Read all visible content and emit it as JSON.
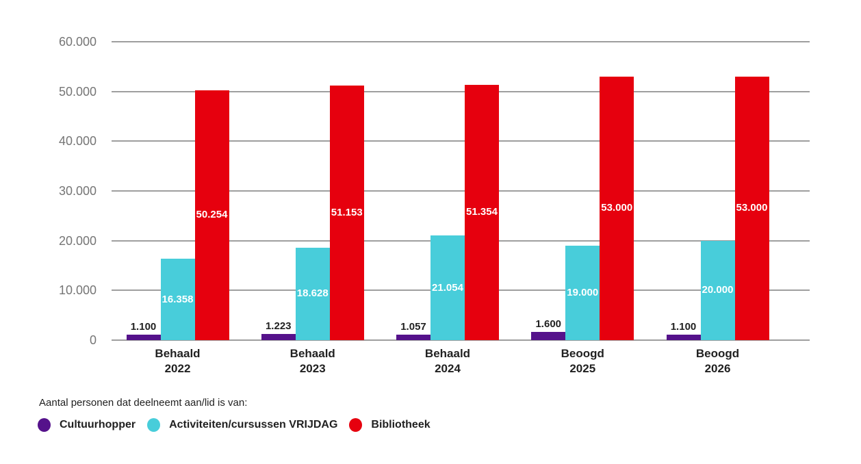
{
  "chart_data": {
    "type": "bar",
    "title": "",
    "categories": [
      [
        "Behaald",
        "2022"
      ],
      [
        "Behaald",
        "2023"
      ],
      [
        "Behaald",
        "2024"
      ],
      [
        "Beoogd",
        "2025"
      ],
      [
        "Beoogd",
        "2026"
      ]
    ],
    "series": [
      {
        "name": "Cultuurhopper",
        "color": "#55128B",
        "values": [
          1100,
          1223,
          1057,
          1600,
          1100
        ],
        "labels": [
          "1.100",
          "1.223",
          "1.057",
          "1.600",
          "1.100"
        ],
        "label_style": "above"
      },
      {
        "name": "Activiteiten/cursussen VRIJDAG",
        "color": "#48CDDA",
        "values": [
          16358,
          18628,
          21054,
          19000,
          20000
        ],
        "labels": [
          "16.358",
          "18.628",
          "21.054",
          "19.000",
          "20.000"
        ],
        "label_style": "inside"
      },
      {
        "name": "Bibliotheek",
        "color": "#E6000E",
        "values": [
          50254,
          51153,
          51354,
          53000,
          53000
        ],
        "labels": [
          "50.254",
          "51.153",
          "51.354",
          "53.000",
          "53.000"
        ],
        "label_style": "inside"
      }
    ],
    "y_axis": {
      "min": 0,
      "max": 60000,
      "step": 10000,
      "tick_labels": [
        "0",
        "10.000",
        "20.000",
        "30.000",
        "40.000",
        "50.000",
        "60.000"
      ]
    },
    "legend": {
      "title": "Aantal personen dat deelneemt aan/lid is van:",
      "position": "bottom"
    },
    "grid": true,
    "axis_colors": {
      "grid_color": "#9E9E9E",
      "tick_color": "#757575",
      "label_color": "#212121"
    }
  }
}
